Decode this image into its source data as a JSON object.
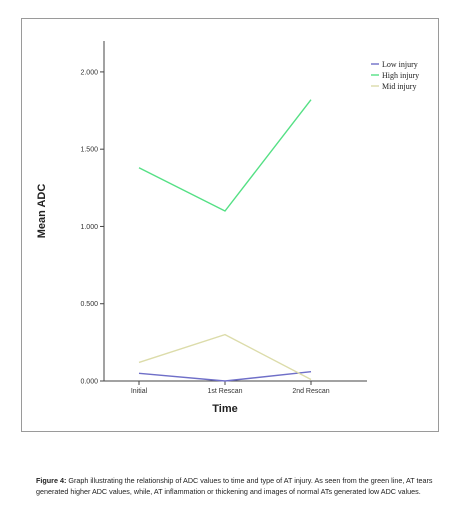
{
  "chart_data": {
    "type": "line",
    "title": "",
    "xlabel": "Time",
    "ylabel": "Mean ADC",
    "categories": [
      "Initial",
      "1st Rescan",
      "2nd Rescan"
    ],
    "y_ticks": [
      "0.000",
      "0.500",
      "1.000",
      "1.500",
      "2.000"
    ],
    "ylim": [
      0,
      2.2
    ],
    "grid": false,
    "legend_position": "top-right",
    "series": [
      {
        "name": "Low injury",
        "color": "#6f6fc8",
        "values": [
          0.05,
          0.0,
          0.06
        ]
      },
      {
        "name": "High injury",
        "color": "#55e085",
        "values": [
          1.38,
          1.1,
          1.82
        ]
      },
      {
        "name": "Mid injury",
        "color": "#dcdcaa",
        "values": [
          0.12,
          0.3,
          0.01
        ]
      }
    ]
  },
  "caption": {
    "label": "Figure 4:",
    "text": " Graph illustrating the relationship of ADC values to time and type of AT injury. As seen from the green line, AT tears generated higher ADC values, while, AT inflammation or thickening and images of normal ATs generated low ADC values."
  }
}
